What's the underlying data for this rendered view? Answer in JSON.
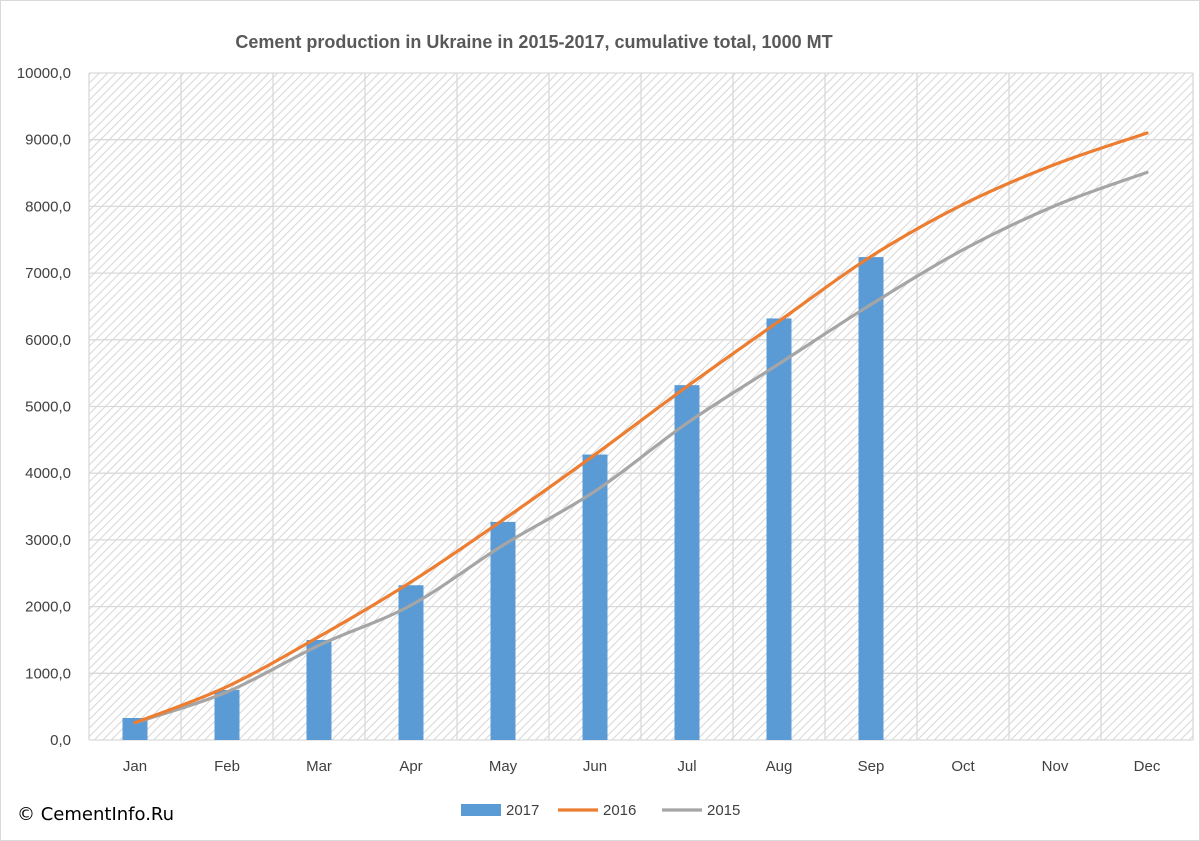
{
  "copyright": "© CementInfo.Ru",
  "colors": {
    "bar_2017": "#5b9bd5",
    "line_2016": "#ed7d31",
    "line_2015": "#a5a5a5",
    "grid": "#d9d9d9",
    "hatch": "#d6d6d6"
  },
  "chart_data": {
    "type": "bar",
    "title": "Cement production in Ukraine in 2015-2017, cumulative total, 1000 MT",
    "categories": [
      "Jan",
      "Feb",
      "Mar",
      "Apr",
      "May",
      "Jun",
      "Jul",
      "Aug",
      "Sep",
      "Oct",
      "Nov",
      "Dec"
    ],
    "ylim": [
      0,
      10000
    ],
    "yticks": [
      0,
      1000,
      2000,
      3000,
      4000,
      5000,
      6000,
      7000,
      8000,
      9000,
      10000
    ],
    "ytick_labels": [
      "0,0",
      "1000,0",
      "2000,0",
      "3000,0",
      "4000,0",
      "5000,0",
      "6000,0",
      "7000,0",
      "8000,0",
      "9000,0",
      "10000,0"
    ],
    "grid": true,
    "legend": "bottom",
    "series": [
      {
        "name": "2017",
        "type": "bar",
        "values": [
          330,
          750,
          1500,
          2320,
          3270,
          4280,
          5320,
          6320,
          7240,
          null,
          null,
          null
        ]
      },
      {
        "name": "2016",
        "type": "line",
        "values": [
          260,
          800,
          1550,
          2370,
          3300,
          4280,
          5300,
          6280,
          7250,
          8030,
          8630,
          9100
        ]
      },
      {
        "name": "2015",
        "type": "line",
        "values": [
          260,
          720,
          1420,
          2020,
          2920,
          3730,
          4750,
          5640,
          6530,
          7350,
          8010,
          8510
        ]
      }
    ]
  }
}
